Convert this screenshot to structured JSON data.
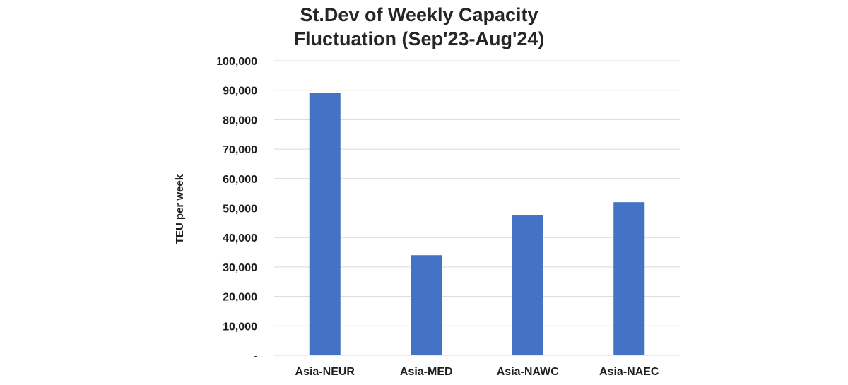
{
  "chart_data": {
    "type": "bar",
    "title_lines": [
      "St.Dev of Weekly Capacity",
      "Fluctuation (Sep'23-Aug'24)"
    ],
    "xlabel": "",
    "ylabel": "TEU per week",
    "categories": [
      "Asia-NEUR",
      "Asia-MED",
      "Asia-NAWC",
      "Asia-NAEC"
    ],
    "values": [
      89000,
      34000,
      47500,
      52000
    ],
    "ylim": [
      0,
      100000
    ],
    "yticks": [
      0,
      10000,
      20000,
      30000,
      40000,
      50000,
      60000,
      70000,
      80000,
      90000,
      100000
    ],
    "ytick_labels": [
      "-",
      "10,000",
      "20,000",
      "30,000",
      "40,000",
      "50,000",
      "60,000",
      "70,000",
      "80,000",
      "90,000",
      "100,000"
    ],
    "bar_color": "#4472c4",
    "grid": true,
    "legend": "none"
  }
}
